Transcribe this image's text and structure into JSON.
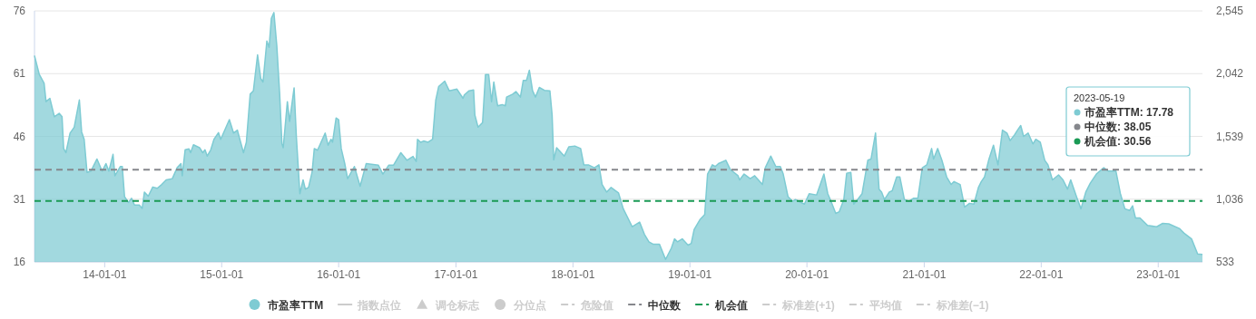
{
  "chart_data": {
    "type": "area",
    "xlim": [
      "2013-05-27",
      "2023-05-19"
    ],
    "xticks": [
      {
        "value": "2014-01-01",
        "label": "14-01-01"
      },
      {
        "value": "2015-01-01",
        "label": "15-01-01"
      },
      {
        "value": "2016-01-01",
        "label": "16-01-01"
      },
      {
        "value": "2017-01-01",
        "label": "17-01-01"
      },
      {
        "value": "2018-01-01",
        "label": "18-01-01"
      },
      {
        "value": "2019-01-01",
        "label": "19-01-01"
      },
      {
        "value": "2020-01-01",
        "label": "20-01-01"
      },
      {
        "value": "2021-01-01",
        "label": "21-01-01"
      },
      {
        "value": "2022-01-01",
        "label": "22-01-01"
      },
      {
        "value": "2023-01-01",
        "label": "23-01-01"
      }
    ],
    "ylim": [
      16,
      76
    ],
    "yticks": [
      16,
      31,
      46,
      61,
      76
    ],
    "y2lim": [
      533,
      2545
    ],
    "y2ticks": [
      {
        "value": 533,
        "label": "533"
      },
      {
        "value": 1036,
        "label": "1,036"
      },
      {
        "value": 1539,
        "label": "1,539"
      },
      {
        "value": 2042,
        "label": "2,042"
      },
      {
        "value": 2545,
        "label": "2,545"
      }
    ],
    "grid": "y",
    "legend": "bottom",
    "annotations": [
      "2023-05-19",
      "市盈率TTM: 17.78",
      "中位数: 38.05",
      "机会值: 30.56"
    ],
    "series": [
      {
        "name": "市盈率TTM",
        "color": "#7ecbd3",
        "x": [
          "2013-05-27",
          "2013-06-11",
          "2013-06-26",
          "2013-07-02",
          "2013-07-14",
          "2013-07-28",
          "2013-08-12",
          "2013-08-21",
          "2013-08-26",
          "2013-09-02",
          "2013-09-15",
          "2013-09-28",
          "2013-10-14",
          "2013-10-21",
          "2013-10-29",
          "2013-11-07",
          "2013-11-19",
          "2013-12-08",
          "2013-12-24",
          "2014-01-05",
          "2014-01-14",
          "2014-01-27",
          "2014-02-02",
          "2014-02-19",
          "2014-02-25",
          "2014-03-04",
          "2014-03-16",
          "2014-03-26",
          "2014-04-04",
          "2014-04-19",
          "2014-04-28",
          "2014-05-05",
          "2014-05-17",
          "2014-05-31",
          "2014-06-14",
          "2014-06-28",
          "2014-07-12",
          "2014-07-31",
          "2014-08-15",
          "2014-08-27",
          "2014-08-31",
          "2014-09-09",
          "2014-09-21",
          "2014-09-26",
          "2014-10-05",
          "2014-10-24",
          "2014-11-03",
          "2014-11-10",
          "2014-11-17",
          "2014-11-28",
          "2014-12-08",
          "2014-12-22",
          "2014-12-29",
          "2015-01-25",
          "2015-02-07",
          "2015-02-19",
          "2015-03-10",
          "2015-03-19",
          "2015-03-31",
          "2015-04-10",
          "2015-04-23",
          "2015-05-03",
          "2015-05-10",
          "2015-05-22",
          "2015-05-29",
          "2015-06-05",
          "2015-06-13",
          "2015-06-22",
          "2015-07-01",
          "2015-07-08",
          "2015-07-12",
          "2015-07-25",
          "2015-08-01",
          "2015-08-15",
          "2015-08-22",
          "2015-09-02",
          "2015-09-12",
          "2015-09-19",
          "2015-09-29",
          "2015-10-10",
          "2015-10-17",
          "2015-10-27",
          "2015-11-20",
          "2015-11-29",
          "2015-12-08",
          "2015-12-13",
          "2015-12-24",
          "2016-01-01",
          "2016-01-09",
          "2016-01-20",
          "2016-01-29",
          "2016-02-19",
          "2016-03-08",
          "2016-03-27",
          "2016-05-04",
          "2016-05-18",
          "2016-06-05",
          "2016-06-20",
          "2016-07-13",
          "2016-08-01",
          "2016-08-20",
          "2016-08-30",
          "2016-09-03",
          "2016-09-13",
          "2016-09-22",
          "2016-10-06",
          "2016-10-20",
          "2016-10-30",
          "2016-11-08",
          "2016-11-27",
          "2016-12-11",
          "2017-01-04",
          "2017-01-23",
          "2017-01-27",
          "2017-02-11",
          "2017-02-25",
          "2017-03-01",
          "2017-03-11",
          "2017-03-25",
          "2017-04-03",
          "2017-04-13",
          "2017-04-22",
          "2017-04-29",
          "2017-05-11",
          "2017-05-25",
          "2017-06-04",
          "2017-06-08",
          "2017-06-27",
          "2017-07-07",
          "2017-07-21",
          "2017-07-30",
          "2017-08-09",
          "2017-08-18",
          "2017-08-28",
          "2017-09-06",
          "2017-09-18",
          "2017-10-04",
          "2017-10-21",
          "2017-10-28",
          "2017-11-02",
          "2017-11-11",
          "2017-12-05",
          "2017-12-19",
          "2018-01-07",
          "2018-01-25",
          "2018-02-04",
          "2018-02-18",
          "2018-03-09",
          "2018-03-23",
          "2018-04-02",
          "2018-04-16",
          "2018-04-30",
          "2018-05-23",
          "2018-06-07",
          "2018-07-05",
          "2018-07-28",
          "2018-08-12",
          "2018-08-26",
          "2018-09-09",
          "2018-09-28",
          "2018-10-17",
          "2018-11-04",
          "2018-11-14",
          "2018-11-23",
          "2018-12-08",
          "2018-12-26",
          "2019-01-05",
          "2019-01-14",
          "2019-02-02",
          "2019-02-16",
          "2019-02-25",
          "2019-03-12",
          "2019-03-21",
          "2019-03-31",
          "2019-04-23",
          "2019-05-07",
          "2019-05-31",
          "2019-06-05",
          "2019-06-19",
          "2019-07-08",
          "2019-07-22",
          "2019-08-15",
          "2019-08-24",
          "2019-09-10",
          "2019-09-26",
          "2019-10-10",
          "2019-10-19",
          "2019-11-03",
          "2019-11-17",
          "2019-11-26",
          "2019-12-24",
          "2020-01-08",
          "2020-01-31",
          "2020-02-23",
          "2020-03-06",
          "2020-03-14",
          "2020-03-31",
          "2020-04-11",
          "2020-04-25",
          "2020-05-04",
          "2020-05-17",
          "2020-05-26",
          "2020-06-07",
          "2020-06-21",
          "2020-07-09",
          "2020-07-19",
          "2020-08-02",
          "2020-08-13",
          "2020-08-21",
          "2020-08-30",
          "2020-09-14",
          "2020-09-23",
          "2020-10-07",
          "2020-10-17",
          "2020-10-31",
          "2020-11-14",
          "2020-11-28",
          "2020-12-12",
          "2020-12-26",
          "2021-01-09",
          "2021-01-24",
          "2021-01-30",
          "2021-02-12",
          "2021-02-25",
          "2021-03-12",
          "2021-03-26",
          "2021-04-04",
          "2021-04-23",
          "2021-05-07",
          "2021-05-22",
          "2021-06-05",
          "2021-06-19",
          "2021-06-28",
          "2021-07-08",
          "2021-07-22",
          "2021-08-05",
          "2021-08-19",
          "2021-09-02",
          "2021-09-16",
          "2021-09-26",
          "2021-10-10",
          "2021-10-19",
          "2021-10-29",
          "2021-11-07",
          "2021-11-21",
          "2021-12-06",
          "2021-12-15",
          "2021-12-29",
          "2022-01-12",
          "2022-01-22",
          "2022-02-05",
          "2022-02-24",
          "2022-03-10",
          "2022-03-24",
          "2022-04-03",
          "2022-04-21",
          "2022-05-05",
          "2022-05-20",
          "2022-06-03",
          "2022-06-22",
          "2022-07-15",
          "2022-07-30",
          "2022-08-22",
          "2022-09-05",
          "2022-09-19",
          "2022-10-04",
          "2022-10-13",
          "2022-10-22",
          "2022-11-05",
          "2022-11-29",
          "2022-12-27",
          "2023-01-15",
          "2023-02-03",
          "2023-03-08",
          "2023-03-22",
          "2023-04-15",
          "2023-05-04",
          "2023-05-19"
        ],
        "values": [
          65.3,
          60.8,
          58.7,
          54.3,
          55.1,
          50.7,
          51.5,
          50.7,
          43.1,
          42.1,
          46.8,
          48.2,
          54.7,
          47.1,
          45.3,
          37.4,
          37.7,
          40.6,
          37.7,
          39.5,
          37.7,
          41.7,
          36.6,
          38.8,
          38.8,
          31.6,
          30.2,
          31.2,
          29.6,
          29.6,
          28.8,
          32.7,
          31.7,
          33.9,
          33.6,
          34.5,
          35.6,
          35.9,
          38.5,
          39.5,
          36.6,
          42.8,
          43.0,
          42.1,
          44.0,
          43.3,
          42.1,
          42.8,
          41.3,
          42.8,
          45.3,
          46.9,
          45.3,
          50.0,
          46.8,
          47.5,
          42.1,
          44.6,
          56.1,
          56.9,
          65.5,
          59.8,
          59.0,
          68.8,
          67.3,
          74.2,
          75.6,
          67.7,
          56.1,
          44.2,
          43.3,
          54.3,
          49.6,
          57.6,
          46.0,
          32.3,
          35.6,
          33.4,
          33.8,
          37.4,
          43.1,
          42.7,
          46.8,
          43.9,
          45.3,
          44.6,
          50.4,
          50.0,
          43.1,
          39.5,
          35.9,
          38.8,
          34.1,
          39.5,
          39.1,
          37.0,
          39.1,
          39.1,
          42.1,
          40.3,
          41.2,
          40.0,
          45.3,
          44.6,
          44.9,
          44.6,
          45.3,
          54.7,
          57.9,
          59.2,
          56.9,
          57.3,
          55.1,
          55.9,
          56.9,
          57.1,
          51.1,
          48.2,
          49.3,
          60.8,
          60.8,
          54.3,
          59.0,
          53.3,
          53.6,
          53.3,
          55.4,
          56.1,
          56.7,
          55.4,
          59.4,
          59.4,
          61.8,
          56.9,
          55.4,
          57.7,
          57.0,
          56.9,
          51.1,
          40.4,
          43.3,
          41.3,
          43.5,
          43.7,
          43.1,
          39.2,
          39.2,
          38.5,
          39.2,
          34.5,
          32.7,
          33.8,
          32.5,
          28.7,
          24.4,
          25.5,
          22.6,
          20.8,
          20.2,
          20.2,
          16.6,
          19.3,
          21.5,
          20.8,
          21.5,
          20.0,
          20.4,
          23.7,
          26.2,
          27.3,
          37.0,
          39.2,
          38.8,
          39.5,
          40.3,
          38.1,
          36.6,
          35.6,
          37.0,
          35.9,
          36.6,
          34.5,
          38.5,
          41.3,
          38.8,
          38.8,
          37.0,
          31.6,
          30.5,
          30.9,
          29.8,
          32.3,
          32.0,
          37.0,
          32.3,
          30.9,
          27.6,
          28.0,
          30.9,
          37.2,
          37.4,
          29.8,
          30.9,
          32.3,
          40.3,
          40.6,
          46.8,
          33.4,
          32.7,
          30.9,
          32.7,
          33.0,
          36.3,
          36.3,
          30.9,
          30.5,
          31.2,
          31.2,
          38.5,
          39.2,
          43.1,
          40.6,
          43.1,
          40.3,
          36.3,
          34.5,
          35.2,
          34.5,
          29.1,
          30.0,
          29.8,
          33.8,
          35.2,
          36.3,
          40.6,
          43.9,
          39.2,
          47.5,
          46.8,
          45.0,
          46.4,
          47.5,
          48.6,
          46.0,
          46.8,
          44.2,
          45.3,
          44.6,
          40.3,
          39.2,
          35.6,
          36.8,
          35.6,
          33.4,
          35.6,
          31.6,
          28.7,
          32.7,
          34.8,
          37.0,
          38.5,
          37.7,
          37.7,
          32.3,
          28.7,
          28.3,
          29.4,
          26.5,
          26.5,
          24.7,
          24.4,
          25.2,
          25.1,
          24.0,
          22.9,
          21.5,
          17.9,
          17.78
        ]
      },
      {
        "name": "指数点位",
        "type": "line",
        "color": "#cccccc",
        "line_style": "solid"
      },
      {
        "name": "调仓标志",
        "type": "scatter",
        "marker": "triangle",
        "color": "#cccccc"
      },
      {
        "name": "分位点",
        "type": "scatter",
        "marker": "circle",
        "color": "#cccccc"
      },
      {
        "name": "危险值",
        "type": "line",
        "line_style": "dashed",
        "color": "#cccccc"
      },
      {
        "name": "中位数",
        "type": "line",
        "line_style": "dashed",
        "color": "#85878c",
        "x": [
          "2013-05-27",
          "2023-05-19"
        ],
        "values": [
          38.05,
          38.05
        ]
      },
      {
        "name": "机会值",
        "type": "line",
        "line_style": "dashed",
        "color": "#1a9a55",
        "x": [
          "2013-05-27",
          "2023-05-19"
        ],
        "values": [
          30.56,
          30.56
        ]
      },
      {
        "name": "标准差(+1)",
        "type": "line",
        "line_style": "dashed",
        "color": "#cccccc"
      },
      {
        "name": "平均值",
        "type": "line",
        "line_style": "dashed",
        "color": "#cccccc"
      },
      {
        "name": "标准差(−1)",
        "type": "line",
        "line_style": "dashed",
        "color": "#cccccc"
      }
    ]
  }
}
